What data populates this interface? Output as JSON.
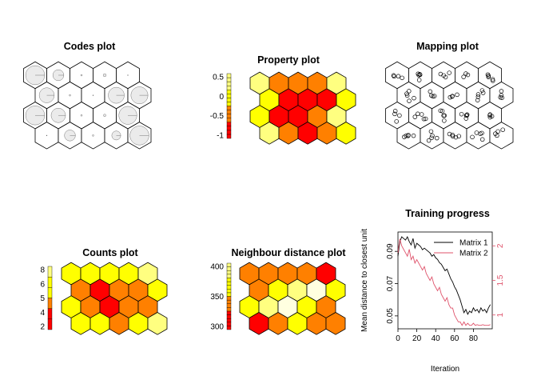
{
  "panels": {
    "codes": {
      "title": "Codes plot"
    },
    "property": {
      "title": "Property plot"
    },
    "mapping": {
      "title": "Mapping plot"
    },
    "counts": {
      "title": "Counts plot"
    },
    "neighbour": {
      "title": "Neighbour distance plot"
    },
    "training": {
      "title": "Training progress"
    }
  },
  "grid": {
    "cols": 5,
    "rows": 4
  },
  "colors": {
    "heat": [
      "#ff0000",
      "#ff8000",
      "#ffff00",
      "#ffff80",
      "#ffffe0"
    ],
    "matrix1": "#000000",
    "matrix2": "#df536b",
    "hex_stroke": "#000000",
    "codes_fill": "#ebebeb"
  },
  "chart_data": [
    {
      "type": "heatmap",
      "panel": "codes",
      "title": "Codes plot",
      "segment_radius": [
        [
          0.95,
          0.55,
          0.05,
          0.15,
          0.0
        ],
        [
          0.75,
          0.08,
          0.0,
          0.8,
          0.85
        ],
        [
          0.95,
          0.72,
          0.05,
          0.12,
          0.9
        ],
        [
          0.0,
          0.55,
          0.05,
          0.45,
          0.95
        ]
      ]
    },
    {
      "type": "heatmap",
      "panel": "property",
      "title": "Property plot",
      "scale_ticks": [
        "0.5",
        "0",
        "-0.5",
        "-1"
      ],
      "cell_color_index": [
        [
          3,
          1,
          1,
          1,
          3
        ],
        [
          2,
          0,
          0,
          0,
          2
        ],
        [
          2,
          0,
          0,
          1,
          3
        ],
        [
          3,
          1,
          0,
          1,
          2
        ]
      ]
    },
    {
      "type": "scatter",
      "panel": "mapping",
      "title": "Mapping plot",
      "points_per_cell": [
        [
          4,
          5,
          4,
          3,
          5
        ],
        [
          5,
          4,
          4,
          5,
          4
        ],
        [
          4,
          5,
          5,
          5,
          4
        ],
        [
          5,
          5,
          5,
          5,
          4
        ]
      ]
    },
    {
      "type": "heatmap",
      "panel": "counts",
      "title": "Counts plot",
      "scale_ticks": [
        "8",
        "6",
        "5",
        "4",
        "2"
      ],
      "cell_color_index": [
        [
          2,
          2,
          2,
          2,
          3
        ],
        [
          1,
          0,
          1,
          1,
          2
        ],
        [
          2,
          1,
          0,
          1,
          1
        ],
        [
          2,
          2,
          1,
          2,
          3
        ]
      ]
    },
    {
      "type": "heatmap",
      "panel": "neighbour",
      "title": "Neighbour distance plot",
      "scale_ticks": [
        "400",
        "350",
        "300"
      ],
      "cell_color_index": [
        [
          1,
          1,
          1,
          1,
          0
        ],
        [
          1,
          2,
          3,
          4,
          2
        ],
        [
          2,
          3,
          4,
          2,
          1
        ],
        [
          0,
          1,
          2,
          1,
          1
        ]
      ]
    },
    {
      "type": "line",
      "panel": "training",
      "title": "Training progress",
      "xlabel": "Iteration",
      "ylabel": "Mean distance to closest unit",
      "xlim": [
        0,
        100
      ],
      "ylim": [
        0.042,
        0.102
      ],
      "y2lim": [
        0.8,
        2.2
      ],
      "xticks": [
        0,
        20,
        40,
        60,
        80
      ],
      "yticks": [
        0.05,
        0.07,
        0.09
      ],
      "y2ticks": [
        1,
        1.5,
        2
      ],
      "legend": "top-right",
      "series": [
        {
          "name": "Matrix 1",
          "axis": "left",
          "x": [
            0,
            2,
            4,
            6,
            8,
            10,
            12,
            14,
            16,
            18,
            20,
            22,
            24,
            26,
            28,
            30,
            32,
            34,
            36,
            38,
            40,
            42,
            44,
            46,
            48,
            50,
            52,
            54,
            56,
            58,
            60,
            62,
            64,
            66,
            68,
            70,
            72,
            74,
            76,
            78,
            80,
            82,
            84,
            86,
            88,
            90,
            92,
            94,
            96,
            98
          ],
          "y": [
            0.087,
            0.096,
            0.099,
            0.098,
            0.097,
            0.099,
            0.096,
            0.094,
            0.098,
            0.092,
            0.095,
            0.094,
            0.093,
            0.091,
            0.092,
            0.091,
            0.09,
            0.089,
            0.087,
            0.088,
            0.086,
            0.085,
            0.083,
            0.082,
            0.08,
            0.078,
            0.079,
            0.076,
            0.073,
            0.071,
            0.068,
            0.066,
            0.063,
            0.06,
            0.056,
            0.052,
            0.054,
            0.051,
            0.053,
            0.052,
            0.055,
            0.053,
            0.054,
            0.052,
            0.055,
            0.053,
            0.054,
            0.052,
            0.055,
            0.057
          ]
        },
        {
          "name": "Matrix 2",
          "axis": "right",
          "x": [
            0,
            2,
            4,
            6,
            8,
            10,
            12,
            14,
            16,
            18,
            20,
            22,
            24,
            26,
            28,
            30,
            32,
            34,
            36,
            38,
            40,
            42,
            44,
            46,
            48,
            50,
            52,
            54,
            56,
            58,
            60,
            62,
            64,
            66,
            68,
            70,
            72,
            74,
            76,
            78,
            80,
            82,
            84,
            86,
            88,
            90,
            92,
            94,
            96,
            98
          ],
          "y": [
            1.9,
            2.1,
            2.0,
            1.95,
            1.9,
            1.85,
            1.95,
            1.8,
            1.85,
            1.75,
            1.8,
            1.75,
            1.7,
            1.65,
            1.7,
            1.6,
            1.55,
            1.5,
            1.55,
            1.45,
            1.4,
            1.35,
            1.4,
            1.3,
            1.25,
            1.2,
            1.25,
            1.15,
            1.1,
            1.1,
            1.0,
            0.95,
            0.9,
            0.9,
            0.85,
            0.9,
            0.85,
            0.88,
            0.85,
            0.85,
            0.88,
            0.85,
            0.86,
            0.85,
            0.85,
            0.86,
            0.85,
            0.85,
            0.85,
            0.86
          ]
        }
      ]
    }
  ]
}
